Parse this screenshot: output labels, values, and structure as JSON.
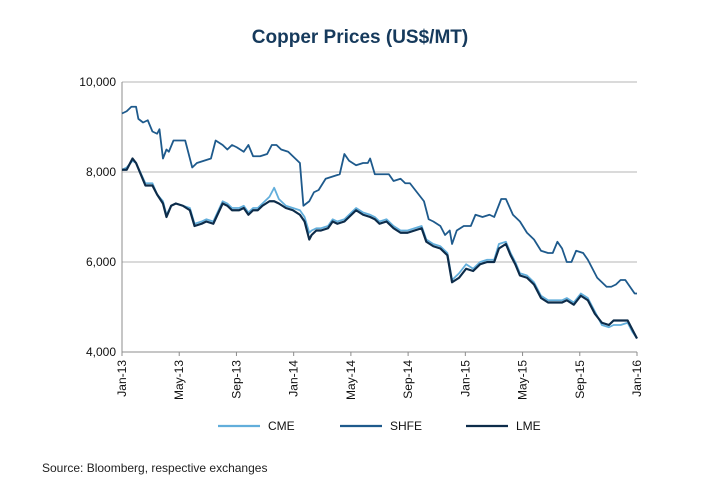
{
  "chart_data": {
    "type": "line",
    "title": "Copper Prices (US$/MT)",
    "xlabel": "",
    "ylabel": "",
    "ylim": [
      4000,
      10000
    ],
    "y_ticks": [
      4000,
      6000,
      8000,
      10000
    ],
    "y_tick_labels": [
      "4,000",
      "6,000",
      "8,000",
      "10,000"
    ],
    "x_tick_labels": [
      "Jan-13",
      "May-13",
      "Sep-13",
      "Jan-14",
      "May-14",
      "Sep-14",
      "Jan-15",
      "May-15",
      "Sep-15",
      "Jan-16"
    ],
    "grid": "horizontal",
    "legend_position": "bottom",
    "series": [
      {
        "name": "CME",
        "color": "#62aedb",
        "values": [
          [
            0,
            8050
          ],
          [
            0.2,
            8100
          ],
          [
            0.45,
            8250
          ],
          [
            0.6,
            8200
          ],
          [
            1,
            7750
          ],
          [
            1.3,
            7750
          ],
          [
            1.5,
            7500
          ],
          [
            1.75,
            7350
          ],
          [
            1.9,
            7050
          ],
          [
            2.1,
            7250
          ],
          [
            2.3,
            7300
          ],
          [
            2.6,
            7250
          ],
          [
            2.9,
            7200
          ],
          [
            3.1,
            6850
          ],
          [
            3.4,
            6900
          ],
          [
            3.6,
            6950
          ],
          [
            3.9,
            6900
          ],
          [
            4.3,
            7350
          ],
          [
            4.5,
            7300
          ],
          [
            4.7,
            7200
          ],
          [
            5,
            7200
          ],
          [
            5.2,
            7250
          ],
          [
            5.4,
            7100
          ],
          [
            5.6,
            7200
          ],
          [
            5.8,
            7200
          ],
          [
            6,
            7300
          ],
          [
            6.3,
            7450
          ],
          [
            6.5,
            7650
          ],
          [
            6.7,
            7400
          ],
          [
            7,
            7250
          ],
          [
            7.3,
            7200
          ],
          [
            7.6,
            7150
          ],
          [
            7.8,
            7000
          ],
          [
            8,
            6650
          ],
          [
            8.1,
            6700
          ],
          [
            8.3,
            6750
          ],
          [
            8.5,
            6750
          ],
          [
            8.8,
            6800
          ],
          [
            9,
            6950
          ],
          [
            9.2,
            6900
          ],
          [
            9.5,
            6950
          ],
          [
            9.7,
            7050
          ],
          [
            10,
            7200
          ],
          [
            10.3,
            7100
          ],
          [
            10.6,
            7050
          ],
          [
            10.8,
            7000
          ],
          [
            11,
            6900
          ],
          [
            11.3,
            6950
          ],
          [
            11.6,
            6800
          ],
          [
            11.9,
            6700
          ],
          [
            12.2,
            6700
          ],
          [
            12.5,
            6750
          ],
          [
            12.8,
            6800
          ],
          [
            13,
            6500
          ],
          [
            13.3,
            6400
          ],
          [
            13.6,
            6350
          ],
          [
            13.9,
            6200
          ],
          [
            14.1,
            5600
          ],
          [
            14.4,
            5750
          ],
          [
            14.7,
            5950
          ],
          [
            15,
            5850
          ],
          [
            15.3,
            6000
          ],
          [
            15.6,
            6050
          ],
          [
            15.9,
            6050
          ],
          [
            16.1,
            6400
          ],
          [
            16.4,
            6450
          ],
          [
            16.6,
            6200
          ],
          [
            16.8,
            6000
          ],
          [
            17,
            5750
          ],
          [
            17.3,
            5700
          ],
          [
            17.6,
            5550
          ],
          [
            17.9,
            5250
          ],
          [
            18.2,
            5150
          ],
          [
            18.5,
            5150
          ],
          [
            18.8,
            5150
          ],
          [
            19,
            5200
          ],
          [
            19.3,
            5100
          ],
          [
            19.6,
            5300
          ],
          [
            19.9,
            5200
          ],
          [
            20.2,
            4900
          ],
          [
            20.5,
            4600
          ],
          [
            20.8,
            4550
          ],
          [
            21,
            4600
          ],
          [
            21.3,
            4600
          ],
          [
            21.6,
            4650
          ],
          [
            21.8,
            4450
          ],
          [
            22,
            4300
          ]
        ]
      },
      {
        "name": "SHFE",
        "color": "#1e5a8c",
        "values": [
          [
            0,
            9300
          ],
          [
            0.2,
            9350
          ],
          [
            0.4,
            9450
          ],
          [
            0.6,
            9450
          ],
          [
            0.7,
            9180
          ],
          [
            0.9,
            9100
          ],
          [
            1.1,
            9150
          ],
          [
            1.3,
            8900
          ],
          [
            1.5,
            8850
          ],
          [
            1.6,
            8950
          ],
          [
            1.75,
            8300
          ],
          [
            1.9,
            8500
          ],
          [
            2,
            8450
          ],
          [
            2.2,
            8700
          ],
          [
            2.4,
            8700
          ],
          [
            2.7,
            8700
          ],
          [
            3,
            8100
          ],
          [
            3.2,
            8200
          ],
          [
            3.5,
            8250
          ],
          [
            3.8,
            8300
          ],
          [
            4,
            8700
          ],
          [
            4.3,
            8600
          ],
          [
            4.5,
            8500
          ],
          [
            4.7,
            8600
          ],
          [
            4.9,
            8550
          ],
          [
            5.2,
            8450
          ],
          [
            5.4,
            8600
          ],
          [
            5.6,
            8350
          ],
          [
            5.9,
            8350
          ],
          [
            6.2,
            8400
          ],
          [
            6.4,
            8600
          ],
          [
            6.6,
            8600
          ],
          [
            6.8,
            8500
          ],
          [
            7.1,
            8450
          ],
          [
            7.4,
            8300
          ],
          [
            7.6,
            8200
          ],
          [
            7.75,
            7250
          ],
          [
            8,
            7350
          ],
          [
            8.2,
            7550
          ],
          [
            8.4,
            7600
          ],
          [
            8.7,
            7850
          ],
          [
            9,
            7900
          ],
          [
            9.3,
            7950
          ],
          [
            9.5,
            8400
          ],
          [
            9.7,
            8250
          ],
          [
            10,
            8150
          ],
          [
            10.3,
            8200
          ],
          [
            10.5,
            8200
          ],
          [
            10.6,
            8300
          ],
          [
            10.8,
            7950
          ],
          [
            11.1,
            7950
          ],
          [
            11.4,
            7950
          ],
          [
            11.6,
            7800
          ],
          [
            11.9,
            7850
          ],
          [
            12.1,
            7750
          ],
          [
            12.3,
            7750
          ],
          [
            12.6,
            7550
          ],
          [
            12.9,
            7350
          ],
          [
            13.1,
            6950
          ],
          [
            13.3,
            6900
          ],
          [
            13.6,
            6800
          ],
          [
            13.8,
            6600
          ],
          [
            14,
            6700
          ],
          [
            14.1,
            6400
          ],
          [
            14.3,
            6700
          ],
          [
            14.6,
            6800
          ],
          [
            14.9,
            6800
          ],
          [
            15.1,
            7050
          ],
          [
            15.4,
            7000
          ],
          [
            15.7,
            7050
          ],
          [
            15.9,
            7000
          ],
          [
            16.2,
            7400
          ],
          [
            16.4,
            7400
          ],
          [
            16.7,
            7050
          ],
          [
            17,
            6900
          ],
          [
            17.3,
            6650
          ],
          [
            17.6,
            6500
          ],
          [
            17.9,
            6250
          ],
          [
            18.2,
            6200
          ],
          [
            18.4,
            6200
          ],
          [
            18.6,
            6450
          ],
          [
            18.8,
            6300
          ],
          [
            19,
            6000
          ],
          [
            19.2,
            6000
          ],
          [
            19.4,
            6250
          ],
          [
            19.7,
            6200
          ],
          [
            19.9,
            6050
          ],
          [
            20.1,
            5850
          ],
          [
            20.3,
            5650
          ],
          [
            20.5,
            5550
          ],
          [
            20.7,
            5450
          ],
          [
            20.9,
            5450
          ],
          [
            21.1,
            5500
          ],
          [
            21.3,
            5600
          ],
          [
            21.5,
            5600
          ],
          [
            21.7,
            5450
          ],
          [
            21.9,
            5300
          ],
          [
            22,
            5300
          ]
        ]
      },
      {
        "name": "LME",
        "color": "#0d2c4a",
        "values": [
          [
            0,
            8050
          ],
          [
            0.2,
            8050
          ],
          [
            0.45,
            8300
          ],
          [
            0.6,
            8200
          ],
          [
            1,
            7700
          ],
          [
            1.3,
            7700
          ],
          [
            1.5,
            7500
          ],
          [
            1.75,
            7300
          ],
          [
            1.9,
            7000
          ],
          [
            2.1,
            7250
          ],
          [
            2.3,
            7300
          ],
          [
            2.6,
            7250
          ],
          [
            2.9,
            7150
          ],
          [
            3.1,
            6800
          ],
          [
            3.4,
            6850
          ],
          [
            3.6,
            6900
          ],
          [
            3.9,
            6850
          ],
          [
            4.3,
            7300
          ],
          [
            4.5,
            7250
          ],
          [
            4.7,
            7150
          ],
          [
            5,
            7150
          ],
          [
            5.2,
            7200
          ],
          [
            5.4,
            7050
          ],
          [
            5.6,
            7150
          ],
          [
            5.8,
            7150
          ],
          [
            6,
            7250
          ],
          [
            6.3,
            7350
          ],
          [
            6.5,
            7350
          ],
          [
            6.7,
            7300
          ],
          [
            7,
            7200
          ],
          [
            7.3,
            7150
          ],
          [
            7.6,
            7050
          ],
          [
            7.8,
            6900
          ],
          [
            8,
            6500
          ],
          [
            8.1,
            6600
          ],
          [
            8.3,
            6700
          ],
          [
            8.5,
            6700
          ],
          [
            8.8,
            6750
          ],
          [
            9,
            6900
          ],
          [
            9.2,
            6850
          ],
          [
            9.5,
            6900
          ],
          [
            9.7,
            7000
          ],
          [
            10,
            7150
          ],
          [
            10.3,
            7050
          ],
          [
            10.6,
            7000
          ],
          [
            10.8,
            6950
          ],
          [
            11,
            6850
          ],
          [
            11.3,
            6900
          ],
          [
            11.6,
            6750
          ],
          [
            11.9,
            6650
          ],
          [
            12.2,
            6650
          ],
          [
            12.5,
            6700
          ],
          [
            12.8,
            6750
          ],
          [
            13,
            6450
          ],
          [
            13.3,
            6350
          ],
          [
            13.6,
            6300
          ],
          [
            13.9,
            6150
          ],
          [
            14.1,
            5550
          ],
          [
            14.4,
            5650
          ],
          [
            14.7,
            5850
          ],
          [
            15,
            5800
          ],
          [
            15.3,
            5950
          ],
          [
            15.6,
            6000
          ],
          [
            15.9,
            6000
          ],
          [
            16.1,
            6300
          ],
          [
            16.4,
            6400
          ],
          [
            16.6,
            6150
          ],
          [
            16.8,
            5950
          ],
          [
            17,
            5700
          ],
          [
            17.3,
            5650
          ],
          [
            17.6,
            5500
          ],
          [
            17.9,
            5200
          ],
          [
            18.2,
            5100
          ],
          [
            18.5,
            5100
          ],
          [
            18.8,
            5100
          ],
          [
            19,
            5150
          ],
          [
            19.3,
            5050
          ],
          [
            19.6,
            5250
          ],
          [
            19.9,
            5150
          ],
          [
            20.2,
            4850
          ],
          [
            20.5,
            4650
          ],
          [
            20.8,
            4600
          ],
          [
            21,
            4700
          ],
          [
            21.3,
            4700
          ],
          [
            21.6,
            4700
          ],
          [
            21.8,
            4500
          ],
          [
            22,
            4300
          ]
        ]
      }
    ],
    "source": "Source: Bloomberg, respective exchanges"
  }
}
